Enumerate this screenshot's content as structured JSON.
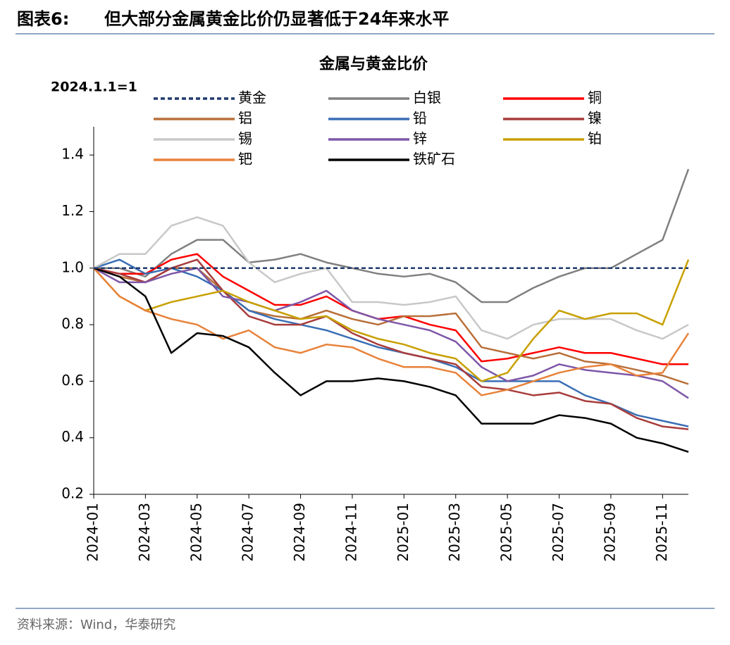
{
  "header": {
    "label": "图表6:",
    "title": "但大部分金属黄金比价仍显著低于24年来水平"
  },
  "chart_data": {
    "type": "line",
    "title": "金属与黄金比价",
    "y_label": "2024.1.1=1",
    "x": [
      "2024-01",
      "2024-02",
      "2024-03",
      "2024-04",
      "2024-05",
      "2024-06",
      "2024-07",
      "2024-08",
      "2024-09",
      "2024-10",
      "2024-11",
      "2024-12",
      "2025-01",
      "2025-02",
      "2025-03",
      "2025-04",
      "2025-05",
      "2025-06",
      "2025-07",
      "2025-08",
      "2025-09",
      "2025-10",
      "2025-11",
      "2025-12"
    ],
    "xlim": [
      "2024-01",
      "2025-12"
    ],
    "xticks": [
      "2024-01",
      "2024-03",
      "2024-05",
      "2024-07",
      "2024-09",
      "2024-11",
      "2025-01",
      "2025-03",
      "2025-05",
      "2025-07",
      "2025-09",
      "2025-11"
    ],
    "ylim": [
      0.2,
      1.5
    ],
    "yticks": [
      0.2,
      0.4,
      0.6,
      0.8,
      {
        "value": 1,
        "label": "1.0"
      },
      1.2,
      1.4
    ],
    "grid": false,
    "series": [
      {
        "name": "黄金",
        "color": "#1f3a6e",
        "dashed": true,
        "values": [
          1,
          1,
          1,
          1,
          1,
          1,
          1,
          1,
          1,
          1,
          1,
          1,
          1,
          1,
          1,
          1,
          1,
          1,
          1,
          1,
          1,
          1,
          1,
          1
        ]
      },
      {
        "name": "白银",
        "color": "#808080",
        "values": [
          1.0,
          1.0,
          0.97,
          1.05,
          1.1,
          1.1,
          1.02,
          1.03,
          1.05,
          1.02,
          1.0,
          0.98,
          0.97,
          0.98,
          0.95,
          0.88,
          0.88,
          0.93,
          0.97,
          1.0,
          1.0,
          1.05,
          1.1,
          1.35
        ]
      },
      {
        "name": "铜",
        "color": "#ff0000",
        "values": [
          1.0,
          0.98,
          0.98,
          1.03,
          1.05,
          0.97,
          0.92,
          0.87,
          0.87,
          0.9,
          0.85,
          0.82,
          0.83,
          0.8,
          0.78,
          0.67,
          0.68,
          0.7,
          0.72,
          0.7,
          0.7,
          0.68,
          0.66,
          0.66
        ]
      },
      {
        "name": "铝",
        "color": "#b8703a",
        "values": [
          1.0,
          0.97,
          0.95,
          1.0,
          1.0,
          0.92,
          0.85,
          0.83,
          0.82,
          0.85,
          0.82,
          0.8,
          0.83,
          0.83,
          0.84,
          0.72,
          0.7,
          0.68,
          0.7,
          0.67,
          0.66,
          0.64,
          0.62,
          0.59
        ]
      },
      {
        "name": "铅",
        "color": "#3a6fb5",
        "values": [
          1.0,
          1.03,
          0.98,
          1.0,
          0.97,
          0.92,
          0.85,
          0.82,
          0.8,
          0.78,
          0.75,
          0.72,
          0.7,
          0.68,
          0.65,
          0.6,
          0.6,
          0.6,
          0.6,
          0.55,
          0.52,
          0.48,
          0.46,
          0.44
        ]
      },
      {
        "name": "镍",
        "color": "#a83c3c",
        "values": [
          1.0,
          0.98,
          0.95,
          1.0,
          1.03,
          0.92,
          0.83,
          0.8,
          0.8,
          0.83,
          0.77,
          0.73,
          0.7,
          0.68,
          0.66,
          0.58,
          0.57,
          0.55,
          0.56,
          0.53,
          0.52,
          0.47,
          0.44,
          0.43
        ]
      },
      {
        "name": "锡",
        "color": "#c8c8c8",
        "values": [
          1.0,
          1.05,
          1.05,
          1.15,
          1.18,
          1.15,
          1.02,
          0.95,
          0.98,
          1.0,
          0.88,
          0.88,
          0.87,
          0.88,
          0.9,
          0.78,
          0.75,
          0.8,
          0.82,
          0.82,
          0.82,
          0.78,
          0.75,
          0.8
        ]
      },
      {
        "name": "锌",
        "color": "#7e57a8",
        "values": [
          1.0,
          0.95,
          0.95,
          0.98,
          1.0,
          0.9,
          0.88,
          0.85,
          0.88,
          0.92,
          0.85,
          0.82,
          0.8,
          0.78,
          0.74,
          0.65,
          0.6,
          0.62,
          0.66,
          0.64,
          0.63,
          0.62,
          0.6,
          0.54
        ]
      },
      {
        "name": "铂",
        "color": "#c8a000",
        "values": [
          1.0,
          0.9,
          0.85,
          0.88,
          0.9,
          0.92,
          0.88,
          0.85,
          0.82,
          0.83,
          0.78,
          0.75,
          0.73,
          0.7,
          0.68,
          0.6,
          0.63,
          0.75,
          0.85,
          0.82,
          0.84,
          0.84,
          0.8,
          1.03
        ]
      },
      {
        "name": "钯",
        "color": "#e8823a",
        "values": [
          1.0,
          0.9,
          0.85,
          0.82,
          0.8,
          0.75,
          0.78,
          0.72,
          0.7,
          0.73,
          0.72,
          0.68,
          0.65,
          0.65,
          0.63,
          0.55,
          0.57,
          0.6,
          0.63,
          0.65,
          0.66,
          0.62,
          0.63,
          0.77
        ]
      },
      {
        "name": "铁矿石",
        "color": "#000000",
        "values": [
          1.0,
          0.97,
          0.9,
          0.7,
          0.77,
          0.76,
          0.72,
          0.63,
          0.55,
          0.6,
          0.6,
          0.61,
          0.6,
          0.58,
          0.55,
          0.45,
          0.45,
          0.45,
          0.48,
          0.47,
          0.45,
          0.4,
          0.38,
          0.35
        ]
      }
    ]
  },
  "footer": {
    "source": "资料来源：Wind，华泰研究"
  }
}
